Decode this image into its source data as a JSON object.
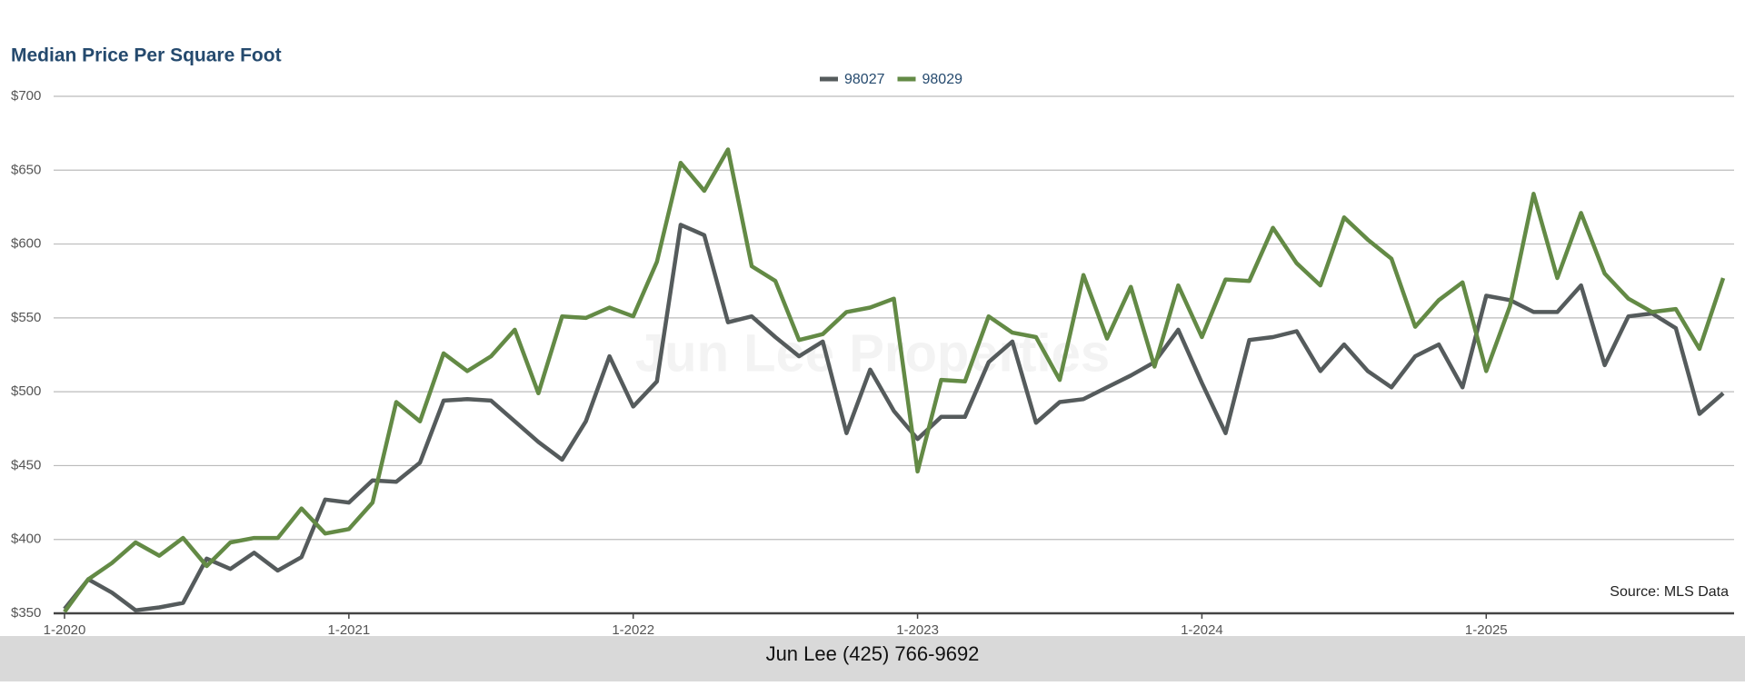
{
  "chart_data": {
    "type": "line",
    "title": "Median Price Per Square Foot",
    "watermark": "Jun Lee Properties",
    "annotation": "Source: MLS Data",
    "footer": "Jun Lee (425) 766-9692",
    "categories": [
      "1-2020",
      null,
      null,
      null,
      null,
      null,
      null,
      null,
      null,
      null,
      null,
      null,
      "1-2021",
      null,
      null,
      null,
      null,
      null,
      null,
      null,
      null,
      null,
      null,
      null,
      "1-2022",
      null,
      null,
      null,
      null,
      null,
      null,
      null,
      null,
      null,
      null,
      null,
      "1-2023",
      null,
      null,
      null,
      null,
      null,
      null,
      null,
      null,
      null,
      null,
      null,
      "1-2024",
      null,
      null,
      null,
      null,
      null,
      null,
      null,
      null,
      null,
      null,
      null,
      "1-2025",
      null,
      null,
      null,
      null,
      null,
      null,
      null,
      null,
      null,
      null
    ],
    "series": [
      {
        "name": "98027",
        "color": "#555b5c",
        "values": [
          353,
          373,
          364,
          352,
          354,
          357,
          387,
          380,
          391,
          379,
          388,
          427,
          425,
          440,
          439,
          452,
          494,
          495,
          494,
          480,
          466,
          454,
          480,
          524,
          490,
          507,
          613,
          606,
          547,
          551,
          537,
          524,
          534,
          472,
          515,
          487,
          468,
          483,
          483,
          520,
          534,
          479,
          493,
          495,
          503,
          511,
          520,
          542,
          506,
          472,
          535,
          537,
          541,
          514,
          532,
          514,
          503,
          524,
          532,
          503,
          565,
          562,
          554,
          554,
          572,
          518,
          551,
          553,
          543,
          485,
          499
        ]
      },
      {
        "name": "98029",
        "color": "#638a45",
        "values": [
          351,
          373,
          384,
          398,
          389,
          401,
          382,
          398,
          401,
          401,
          421,
          404,
          407,
          425,
          493,
          480,
          526,
          514,
          524,
          542,
          499,
          551,
          550,
          557,
          551,
          588,
          655,
          636,
          664,
          585,
          575,
          535,
          539,
          554,
          557,
          563,
          446,
          508,
          507,
          551,
          540,
          537,
          508,
          579,
          536,
          571,
          517,
          572,
          537,
          576,
          575,
          611,
          587,
          572,
          618,
          603,
          590,
          544,
          562,
          574,
          514,
          558,
          634,
          577,
          621,
          580,
          563,
          554,
          556,
          529,
          577
        ]
      }
    ],
    "ylim": [
      350,
      700
    ],
    "yticks": [
      {
        "value": 350,
        "label": "$350"
      },
      {
        "value": 400,
        "label": "$400"
      },
      {
        "value": 450,
        "label": "$450"
      },
      {
        "value": 500,
        "label": "$500"
      },
      {
        "value": 550,
        "label": "$550"
      },
      {
        "value": 600,
        "label": "$600"
      },
      {
        "value": 650,
        "label": "$650"
      },
      {
        "value": 700,
        "label": "$700"
      }
    ],
    "grid": true
  }
}
